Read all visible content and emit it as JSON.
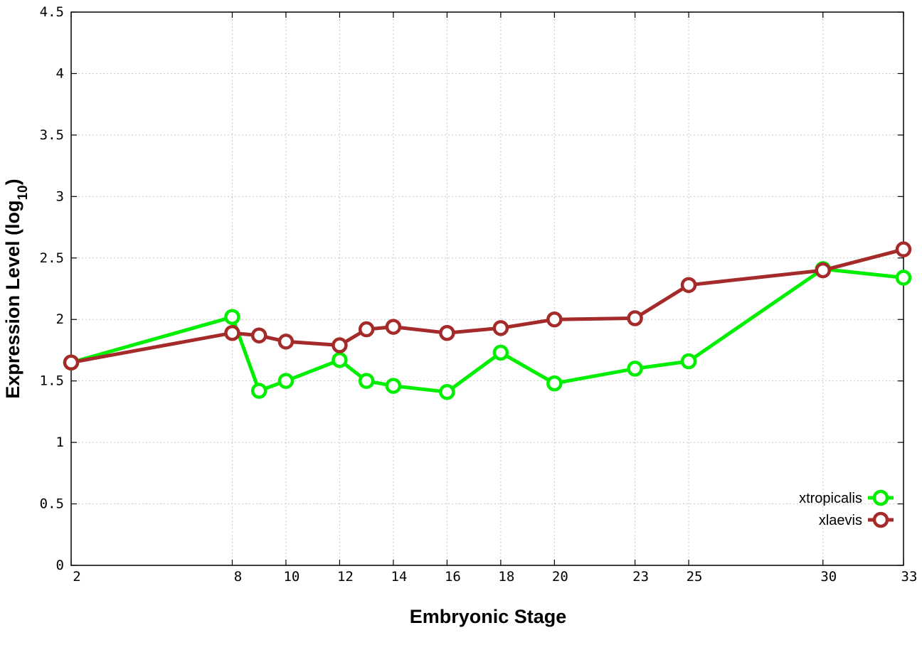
{
  "chart_data": {
    "type": "line",
    "title": "",
    "xlabel": "Embryonic Stage",
    "ylabel": "Expression Level",
    "ylabel_paren_open": "(",
    "ylabel_log": "log",
    "ylabel_sub": "10",
    "ylabel_paren_close": ")",
    "xlim": [
      2,
      33
    ],
    "ylim": [
      0,
      4.5
    ],
    "x_ticks": [
      2,
      8,
      10,
      12,
      14,
      16,
      18,
      20,
      23,
      25,
      30,
      33
    ],
    "x_tick_labels": [
      "2",
      "8",
      "10",
      "12",
      "14",
      "16",
      "18",
      "20",
      "23",
      "25",
      "30",
      "33"
    ],
    "y_ticks": [
      0,
      0.5,
      1,
      1.5,
      2,
      2.5,
      3,
      3.5,
      4,
      4.5
    ],
    "y_tick_labels": [
      "0",
      "0.5",
      "1",
      "1.5",
      "2",
      "2.5",
      "3",
      "3.5",
      "4",
      "4.5"
    ],
    "grid": true,
    "legend_position": "bottom-right",
    "series": [
      {
        "name": "xtropicalis",
        "color": "#00ee00",
        "x": [
          2,
          8,
          9,
          10,
          12,
          13,
          14,
          16,
          18,
          20,
          23,
          25,
          30,
          33
        ],
        "y": [
          1.65,
          2.02,
          1.42,
          1.5,
          1.67,
          1.5,
          1.46,
          1.41,
          1.73,
          1.48,
          1.6,
          1.66,
          2.41,
          2.34
        ]
      },
      {
        "name": "xlaevis",
        "color": "#a52a2a",
        "x": [
          2,
          8,
          9,
          10,
          12,
          13,
          14,
          16,
          18,
          20,
          23,
          25,
          30,
          33
        ],
        "y": [
          1.65,
          1.89,
          1.87,
          1.82,
          1.79,
          1.92,
          1.94,
          1.89,
          1.93,
          2.0,
          2.01,
          2.28,
          2.4,
          2.57
        ]
      }
    ]
  }
}
